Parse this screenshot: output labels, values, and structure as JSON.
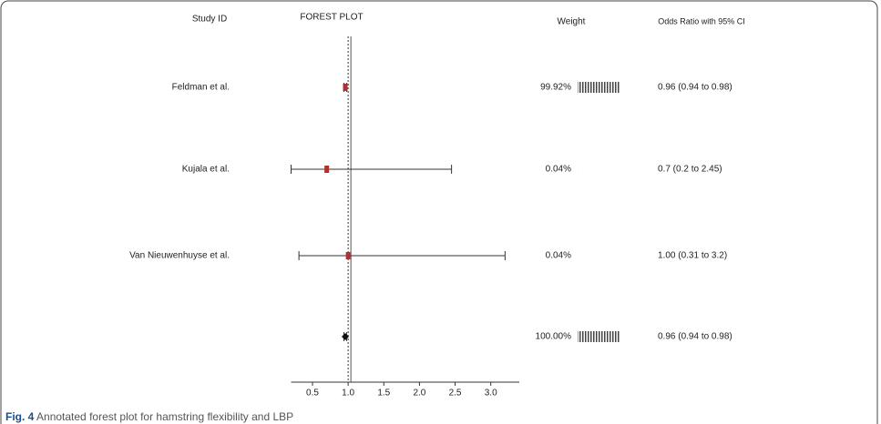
{
  "chart_data": {
    "type": "forest",
    "headers": {
      "study": "Study ID",
      "plot": "FOREST PLOT",
      "weight": "Weight",
      "ci": "Odds Ratio with 95% CI"
    },
    "categories": [
      "Feldman et al.",
      "Kujala et al.",
      "Van Nieuwenhuyse et al.",
      null
    ],
    "values": [
      0.96,
      0.7,
      1.0,
      0.96
    ],
    "ci_low": [
      0.94,
      0.2,
      0.31,
      0.94
    ],
    "ci_high": [
      0.98,
      2.45,
      3.2,
      0.98
    ],
    "value_labels": [
      "0.96 (0.94 to 0.98)",
      "0.7 (0.2 to 2.45)",
      "1.00 (0.31 to 3.2)",
      "0.96 (0.94 to 0.98)"
    ],
    "weights": [
      99.92,
      0.04,
      0.04,
      100.0
    ],
    "weight_labels": [
      "99.92%",
      "0.04%",
      "0.04%",
      "100.00%"
    ],
    "reference": 1,
    "xlim": [
      0.2,
      3.4
    ],
    "xticks": [
      0.5,
      {
        "value": 1,
        "label": "1.0"
      },
      1.5,
      {
        "value": 2,
        "label": "2.0"
      },
      2.5,
      {
        "value": 3,
        "label": "3.0"
      }
    ],
    "study_color": "#b03030",
    "summary_color": "#111111"
  },
  "caption": {
    "label": "Fig. 4",
    "text": "Annotated forest plot for hamstring flexibility and LBP"
  }
}
